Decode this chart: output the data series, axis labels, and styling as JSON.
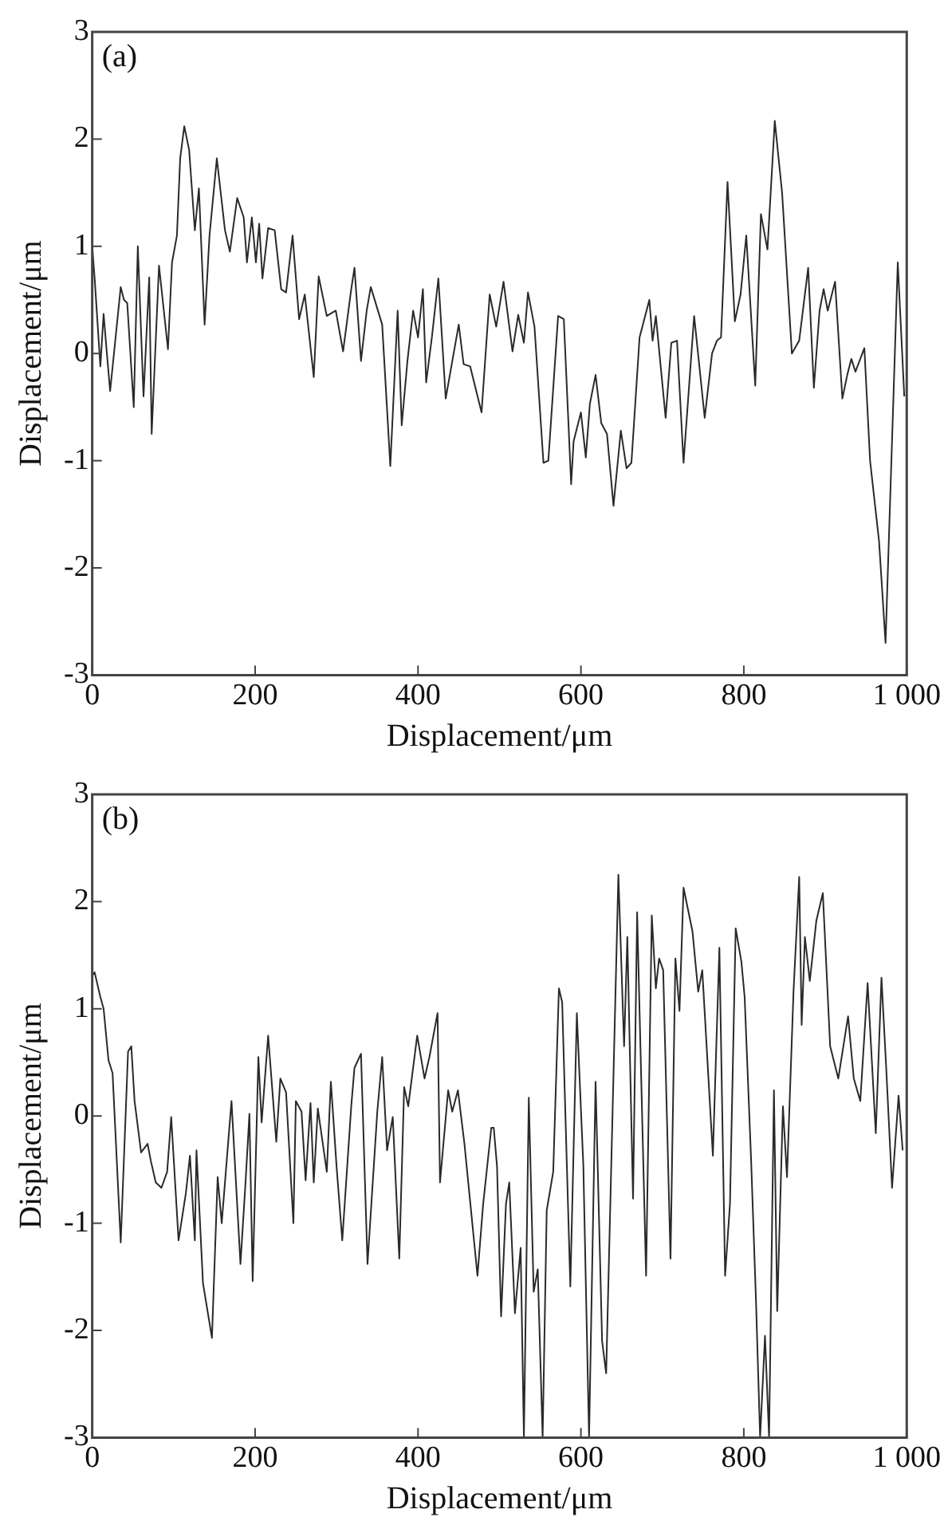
{
  "chart_data": [
    {
      "type": "line",
      "annotations": [
        "(a)"
      ],
      "xlabel": "Displacement/μm",
      "ylabel": "Displacement/μm",
      "xlim": [
        0,
        1000
      ],
      "xticks": [
        0,
        200,
        400,
        600,
        800,
        {
          "value": 1000,
          "label": "1 000"
        }
      ],
      "ylim": [
        -3,
        3
      ],
      "yticks": [
        -3,
        -2,
        -1,
        0,
        1,
        2,
        3
      ],
      "legend": false,
      "marker": "none",
      "series": [
        {
          "color": "#2a2a2a",
          "x": [
            0,
            3,
            10,
            14,
            18,
            22,
            35,
            39,
            43,
            51,
            56,
            63,
            70,
            73,
            82,
            93,
            98,
            104,
            108,
            113,
            119,
            126,
            131,
            138,
            144,
            153,
            163,
            169,
            178,
            186,
            190,
            196,
            201,
            205,
            209,
            216,
            224,
            232,
            238,
            246,
            254,
            261,
            272,
            278,
            288,
            299,
            308,
            318,
            322,
            330,
            337,
            342,
            356,
            366,
            375,
            380,
            387,
            394,
            400,
            406,
            410,
            417,
            425,
            434,
            450,
            456,
            464,
            478,
            488,
            496,
            505,
            516,
            523,
            530,
            535,
            543,
            554,
            560,
            572,
            579,
            588,
            591,
            600,
            606,
            611,
            618,
            625,
            632,
            640,
            649,
            656,
            662,
            672,
            684,
            688,
            692,
            704,
            711,
            718,
            726,
            739,
            752,
            761,
            767,
            772,
            780,
            789,
            796,
            803,
            814,
            821,
            829,
            838,
            847,
            859,
            868,
            879,
            886,
            893,
            898,
            903,
            912,
            921,
            927,
            932,
            937,
            948,
            955,
            966,
            974,
            989,
            997
          ],
          "values": [
            1.0,
            0.7,
            -0.12,
            0.37,
            0,
            -0.35,
            0.62,
            0.5,
            0.47,
            -0.5,
            1.0,
            -0.4,
            0.71,
            -0.75,
            0.82,
            0.04,
            0.85,
            1.1,
            1.82,
            2.12,
            1.9,
            1.15,
            1.54,
            0.27,
            1.1,
            1.82,
            1.15,
            0.95,
            1.45,
            1.27,
            0.85,
            1.27,
            0.85,
            1.21,
            0.7,
            1.17,
            1.15,
            0.6,
            0.57,
            1.1,
            0.32,
            0.55,
            -0.22,
            0.72,
            0.35,
            0.4,
            0.02,
            0.6,
            0.8,
            -0.07,
            0.4,
            0.62,
            0.27,
            -1.05,
            0.4,
            -0.67,
            -0.07,
            0.4,
            0.15,
            0.6,
            -0.27,
            0.15,
            0.7,
            -0.42,
            0.27,
            -0.1,
            -0.12,
            -0.55,
            0.55,
            0.25,
            0.67,
            0.02,
            0.36,
            0.1,
            0.57,
            0.25,
            -1.02,
            -1.0,
            0.35,
            0.32,
            -1.22,
            -0.82,
            -0.55,
            -0.97,
            -0.47,
            -0.2,
            -0.65,
            -0.75,
            -1.42,
            -0.72,
            -1.07,
            -1.02,
            0.15,
            0.5,
            0.12,
            0.35,
            -0.6,
            0.1,
            0.12,
            -1.02,
            0.35,
            -0.6,
            0,
            0.12,
            0.15,
            1.6,
            0.3,
            0.55,
            1.1,
            -0.3,
            1.3,
            0.97,
            2.17,
            1.5,
            0,
            0.12,
            0.8,
            -0.32,
            0.4,
            0.6,
            0.4,
            0.67,
            -0.42,
            -0.2,
            -0.05,
            -0.17,
            0.05,
            -1.0,
            -1.75,
            -2.7,
            0.85,
            -0.4
          ]
        }
      ]
    },
    {
      "type": "line",
      "annotations": [
        "(b)"
      ],
      "xlabel": "Displacement/μm",
      "ylabel": "Displacement/μm",
      "xlim": [
        0,
        1000
      ],
      "xticks": [
        0,
        200,
        400,
        600,
        800,
        {
          "value": 1000,
          "label": "1 000"
        }
      ],
      "ylim": [
        -3,
        3
      ],
      "yticks": [
        -3,
        -2,
        -1,
        0,
        1,
        2,
        3
      ],
      "legend": false,
      "marker": "none",
      "series": [
        {
          "color": "#2a2a2a",
          "x": [
            0,
            3,
            10,
            14,
            20,
            25,
            35,
            44,
            48,
            52,
            60,
            68,
            72,
            78,
            85,
            92,
            97,
            106,
            115,
            120,
            126,
            128,
            136,
            147,
            154,
            159,
            171,
            182,
            188,
            193,
            197,
            204,
            208,
            216,
            226,
            231,
            238,
            247,
            250,
            257,
            262,
            268,
            272,
            277,
            288,
            293,
            300,
            307,
            318,
            322,
            330,
            338,
            350,
            356,
            362,
            369,
            377,
            383,
            388,
            399,
            408,
            414,
            424,
            427,
            437,
            442,
            449,
            457,
            473,
            480,
            490,
            493,
            497,
            502,
            508,
            512,
            519,
            526,
            530,
            536,
            542,
            547,
            553,
            558,
            566,
            573,
            577,
            587,
            595,
            603,
            610,
            618,
            626,
            631,
            646,
            653,
            657,
            664,
            669,
            680,
            687,
            692,
            696,
            701,
            710,
            716,
            721,
            726,
            737,
            744,
            749,
            762,
            770,
            777,
            783,
            790,
            797,
            801,
            809,
            815,
            820,
            826,
            831,
            837,
            841,
            848,
            853,
            861,
            868,
            871,
            875,
            881,
            889,
            897,
            906,
            916,
            928,
            935,
            943,
            952,
            962,
            969,
            975,
            982,
            990,
            995
          ],
          "values": [
            1.31,
            1.34,
            1.11,
            1.0,
            0.52,
            0.4,
            -1.18,
            0.6,
            0.65,
            0.14,
            -0.34,
            -0.26,
            -0.42,
            -0.62,
            -0.67,
            -0.52,
            -0.01,
            -1.16,
            -0.72,
            -0.37,
            -1.16,
            -0.32,
            -1.56,
            -2.07,
            -0.57,
            -1.0,
            0.14,
            -1.38,
            -0.65,
            0.02,
            -1.54,
            0.55,
            -0.06,
            0.75,
            -0.24,
            0.35,
            0.22,
            -1.0,
            0.14,
            0.04,
            -0.6,
            0.12,
            -0.62,
            0.07,
            -0.52,
            0.32,
            -0.47,
            -1.16,
            0.09,
            0.45,
            0.58,
            -1.38,
            0.04,
            0.55,
            -0.32,
            -0.01,
            -1.33,
            0.27,
            0.09,
            0.75,
            0.35,
            0.55,
            0.96,
            -0.62,
            0.24,
            0.04,
            0.24,
            -0.26,
            -1.49,
            -0.82,
            -0.11,
            -0.11,
            -0.47,
            -1.87,
            -0.82,
            -0.62,
            -1.84,
            -1.23,
            -3,
            0.17,
            -1.64,
            -1.43,
            -3,
            -0.88,
            -0.52,
            1.19,
            1.06,
            -1.59,
            0.96,
            -0.47,
            -3,
            0.32,
            -2.1,
            -2.4,
            2.25,
            0.65,
            1.67,
            -0.77,
            1.9,
            -1.49,
            1.87,
            1.19,
            1.47,
            1.36,
            -1.33,
            1.47,
            0.98,
            2.13,
            1.72,
            1.16,
            1.36,
            -0.37,
            1.57,
            -1.49,
            -0.82,
            1.75,
            1.44,
            1.11,
            -0.42,
            -1.74,
            -3,
            -2.05,
            -3,
            0.24,
            -1.82,
            0.09,
            -0.57,
            1.16,
            2.23,
            0.85,
            1.67,
            1.26,
            1.82,
            2.08,
            0.65,
            0.35,
            0.93,
            0.35,
            0.14,
            1.24,
            -0.16,
            1.29,
            0.42,
            -0.67,
            0.19,
            -0.32
          ]
        }
      ]
    }
  ]
}
